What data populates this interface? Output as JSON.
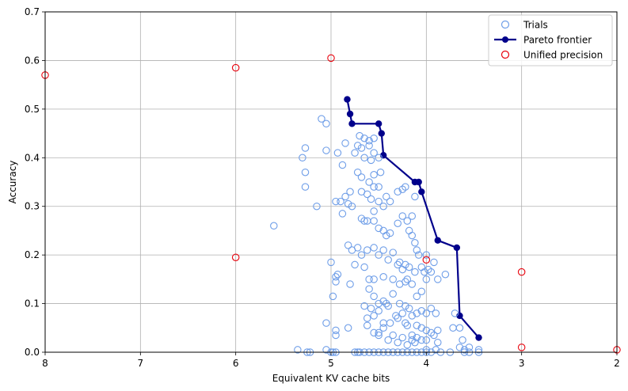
{
  "chart_data": {
    "type": "scatter",
    "xlabel": "Equivalent KV cache bits",
    "ylabel": "Accuracy",
    "xlim": [
      8,
      2
    ],
    "ylim": [
      0,
      0.7
    ],
    "x_reversed": true,
    "grid": true,
    "legend_placement": "top-right",
    "xticks": [
      8,
      7,
      6,
      5,
      4,
      3,
      2
    ],
    "yticks": [
      0.0,
      0.1,
      0.2,
      0.3,
      0.4,
      0.5,
      0.6,
      0.7
    ],
    "xtick_labels": [
      "8",
      "7",
      "6",
      "5",
      "4",
      "3",
      "2"
    ],
    "ytick_labels": [
      "0.0",
      "0.1",
      "0.2",
      "0.3",
      "0.4",
      "0.5",
      "0.6",
      "0.7"
    ],
    "colors": {
      "trials": "#6f9ee8",
      "pareto": "#00008b",
      "unified": "#e8000b",
      "grid": "#b0b0b0"
    },
    "legend": [
      {
        "name": "Trials",
        "marker": "open-circle"
      },
      {
        "name": "Pareto frontier",
        "marker": "line-dot"
      },
      {
        "name": "Unified precision",
        "marker": "open-circle"
      }
    ],
    "series": [
      {
        "name": "Trials",
        "points": [
          [
            5.35,
            0.005
          ],
          [
            5.25,
            0.0
          ],
          [
            5.22,
            0.0
          ],
          [
            5.05,
            0.005
          ],
          [
            5.0,
            0.0
          ],
          [
            4.98,
            0.0
          ],
          [
            4.95,
            0.0
          ],
          [
            4.75,
            0.0
          ],
          [
            4.72,
            0.0
          ],
          [
            4.7,
            0.0
          ],
          [
            4.65,
            0.0
          ],
          [
            4.6,
            0.0
          ],
          [
            4.55,
            0.0
          ],
          [
            4.5,
            0.0
          ],
          [
            4.45,
            0.0
          ],
          [
            4.4,
            0.0
          ],
          [
            4.35,
            0.0
          ],
          [
            4.3,
            0.0
          ],
          [
            4.25,
            0.0
          ],
          [
            4.2,
            0.0
          ],
          [
            4.15,
            0.0
          ],
          [
            4.1,
            0.0
          ],
          [
            4.05,
            0.0
          ],
          [
            4.0,
            0.0
          ],
          [
            3.95,
            0.0
          ],
          [
            3.85,
            0.0
          ],
          [
            3.75,
            0.0
          ],
          [
            3.6,
            0.0
          ],
          [
            3.55,
            0.0
          ],
          [
            3.45,
            0.0
          ],
          [
            5.1,
            0.48
          ],
          [
            5.05,
            0.47
          ],
          [
            5.27,
            0.42
          ],
          [
            5.3,
            0.4
          ],
          [
            5.05,
            0.415
          ],
          [
            4.93,
            0.41
          ],
          [
            5.27,
            0.37
          ],
          [
            5.27,
            0.34
          ],
          [
            5.15,
            0.3
          ],
          [
            5.6,
            0.26
          ],
          [
            4.7,
            0.445
          ],
          [
            4.65,
            0.44
          ],
          [
            4.6,
            0.435
          ],
          [
            4.55,
            0.44
          ],
          [
            4.72,
            0.425
          ],
          [
            4.68,
            0.42
          ],
          [
            4.6,
            0.425
          ],
          [
            4.85,
            0.43
          ],
          [
            4.75,
            0.41
          ],
          [
            4.65,
            0.4
          ],
          [
            4.55,
            0.41
          ],
          [
            4.5,
            0.4
          ],
          [
            4.58,
            0.395
          ],
          [
            4.88,
            0.385
          ],
          [
            4.72,
            0.37
          ],
          [
            4.68,
            0.36
          ],
          [
            4.6,
            0.35
          ],
          [
            4.55,
            0.365
          ],
          [
            4.48,
            0.37
          ],
          [
            4.8,
            0.33
          ],
          [
            4.68,
            0.33
          ],
          [
            4.62,
            0.325
          ],
          [
            4.55,
            0.34
          ],
          [
            4.5,
            0.34
          ],
          [
            4.42,
            0.32
          ],
          [
            4.38,
            0.31
          ],
          [
            4.3,
            0.33
          ],
          [
            4.25,
            0.335
          ],
          [
            4.22,
            0.34
          ],
          [
            4.95,
            0.31
          ],
          [
            4.9,
            0.31
          ],
          [
            4.85,
            0.32
          ],
          [
            4.82,
            0.305
          ],
          [
            4.78,
            0.3
          ],
          [
            4.58,
            0.315
          ],
          [
            4.55,
            0.29
          ],
          [
            4.5,
            0.31
          ],
          [
            4.45,
            0.3
          ],
          [
            4.88,
            0.285
          ],
          [
            4.68,
            0.275
          ],
          [
            4.65,
            0.27
          ],
          [
            4.62,
            0.27
          ],
          [
            4.55,
            0.27
          ],
          [
            4.5,
            0.255
          ],
          [
            4.45,
            0.25
          ],
          [
            4.42,
            0.24
          ],
          [
            4.38,
            0.245
          ],
          [
            4.3,
            0.265
          ],
          [
            4.25,
            0.28
          ],
          [
            4.2,
            0.27
          ],
          [
            4.18,
            0.25
          ],
          [
            4.15,
            0.24
          ],
          [
            4.12,
            0.225
          ],
          [
            4.1,
            0.21
          ],
          [
            4.08,
            0.2
          ],
          [
            4.0,
            0.2
          ],
          [
            4.12,
            0.32
          ],
          [
            4.15,
            0.28
          ],
          [
            4.82,
            0.22
          ],
          [
            4.78,
            0.21
          ],
          [
            4.72,
            0.215
          ],
          [
            4.68,
            0.2
          ],
          [
            4.62,
            0.21
          ],
          [
            4.55,
            0.215
          ],
          [
            4.5,
            0.2
          ],
          [
            4.45,
            0.21
          ],
          [
            4.4,
            0.19
          ],
          [
            4.35,
            0.205
          ],
          [
            4.3,
            0.18
          ],
          [
            4.28,
            0.185
          ],
          [
            4.25,
            0.17
          ],
          [
            4.22,
            0.18
          ],
          [
            4.18,
            0.175
          ],
          [
            4.12,
            0.165
          ],
          [
            4.05,
            0.175
          ],
          [
            4.02,
            0.165
          ],
          [
            4.0,
            0.15
          ],
          [
            3.95,
            0.165
          ],
          [
            3.92,
            0.185
          ],
          [
            3.88,
            0.15
          ],
          [
            3.8,
            0.16
          ],
          [
            3.98,
            0.17
          ],
          [
            5.0,
            0.185
          ],
          [
            4.93,
            0.16
          ],
          [
            4.95,
            0.155
          ],
          [
            4.95,
            0.145
          ],
          [
            4.75,
            0.18
          ],
          [
            4.65,
            0.175
          ],
          [
            4.6,
            0.15
          ],
          [
            4.55,
            0.15
          ],
          [
            4.45,
            0.155
          ],
          [
            4.35,
            0.15
          ],
          [
            4.28,
            0.14
          ],
          [
            4.22,
            0.145
          ],
          [
            4.2,
            0.15
          ],
          [
            4.15,
            0.14
          ],
          [
            4.1,
            0.115
          ],
          [
            4.05,
            0.125
          ],
          [
            4.98,
            0.115
          ],
          [
            4.8,
            0.14
          ],
          [
            4.6,
            0.13
          ],
          [
            4.55,
            0.115
          ],
          [
            4.5,
            0.1
          ],
          [
            4.45,
            0.105
          ],
          [
            4.42,
            0.1
          ],
          [
            4.35,
            0.12
          ],
          [
            4.28,
            0.1
          ],
          [
            4.22,
            0.095
          ],
          [
            4.18,
            0.09
          ],
          [
            4.1,
            0.08
          ],
          [
            4.05,
            0.085
          ],
          [
            4.0,
            0.08
          ],
          [
            3.95,
            0.09
          ],
          [
            3.9,
            0.08
          ],
          [
            3.72,
            0.05
          ],
          [
            3.7,
            0.08
          ],
          [
            4.65,
            0.095
          ],
          [
            4.58,
            0.09
          ],
          [
            4.5,
            0.085
          ],
          [
            4.4,
            0.095
          ],
          [
            4.32,
            0.075
          ],
          [
            4.25,
            0.08
          ],
          [
            4.15,
            0.075
          ],
          [
            4.62,
            0.07
          ],
          [
            4.55,
            0.075
          ],
          [
            4.45,
            0.06
          ],
          [
            4.38,
            0.06
          ],
          [
            4.3,
            0.07
          ],
          [
            4.22,
            0.06
          ],
          [
            4.2,
            0.055
          ],
          [
            4.1,
            0.055
          ],
          [
            4.05,
            0.05
          ],
          [
            4.0,
            0.045
          ],
          [
            3.95,
            0.04
          ],
          [
            3.88,
            0.045
          ],
          [
            3.65,
            0.05
          ],
          [
            5.05,
            0.06
          ],
          [
            4.95,
            0.045
          ],
          [
            4.95,
            0.035
          ],
          [
            4.82,
            0.05
          ],
          [
            4.62,
            0.055
          ],
          [
            4.55,
            0.04
          ],
          [
            4.5,
            0.04
          ],
          [
            4.45,
            0.05
          ],
          [
            4.35,
            0.035
          ],
          [
            4.25,
            0.03
          ],
          [
            4.15,
            0.035
          ],
          [
            4.12,
            0.02
          ],
          [
            4.05,
            0.025
          ],
          [
            4.0,
            0.025
          ],
          [
            3.92,
            0.035
          ],
          [
            3.88,
            0.02
          ],
          [
            3.62,
            0.025
          ],
          [
            3.65,
            0.01
          ],
          [
            3.55,
            0.01
          ],
          [
            4.5,
            0.035
          ],
          [
            4.4,
            0.025
          ],
          [
            4.3,
            0.02
          ],
          [
            4.2,
            0.015
          ],
          [
            4.15,
            0.025
          ],
          [
            4.1,
            0.03
          ],
          [
            4.0,
            0.005
          ],
          [
            3.9,
            0.005
          ],
          [
            3.6,
            0.005
          ],
          [
            3.45,
            0.005
          ]
        ]
      },
      {
        "name": "Pareto frontier",
        "points": [
          [
            4.83,
            0.52
          ],
          [
            4.8,
            0.49
          ],
          [
            4.78,
            0.47
          ],
          [
            4.5,
            0.47
          ],
          [
            4.47,
            0.45
          ],
          [
            4.45,
            0.405
          ],
          [
            4.12,
            0.35
          ],
          [
            4.08,
            0.35
          ],
          [
            4.05,
            0.33
          ],
          [
            3.88,
            0.23
          ],
          [
            3.68,
            0.215
          ],
          [
            3.65,
            0.075
          ],
          [
            3.45,
            0.03
          ]
        ]
      },
      {
        "name": "Unified precision",
        "points": [
          [
            8,
            0.57
          ],
          [
            6,
            0.585
          ],
          [
            5,
            0.605
          ],
          [
            6,
            0.195
          ],
          [
            4,
            0.19
          ],
          [
            3,
            0.165
          ],
          [
            3,
            0.01
          ],
          [
            2,
            0.005
          ]
        ]
      }
    ]
  }
}
